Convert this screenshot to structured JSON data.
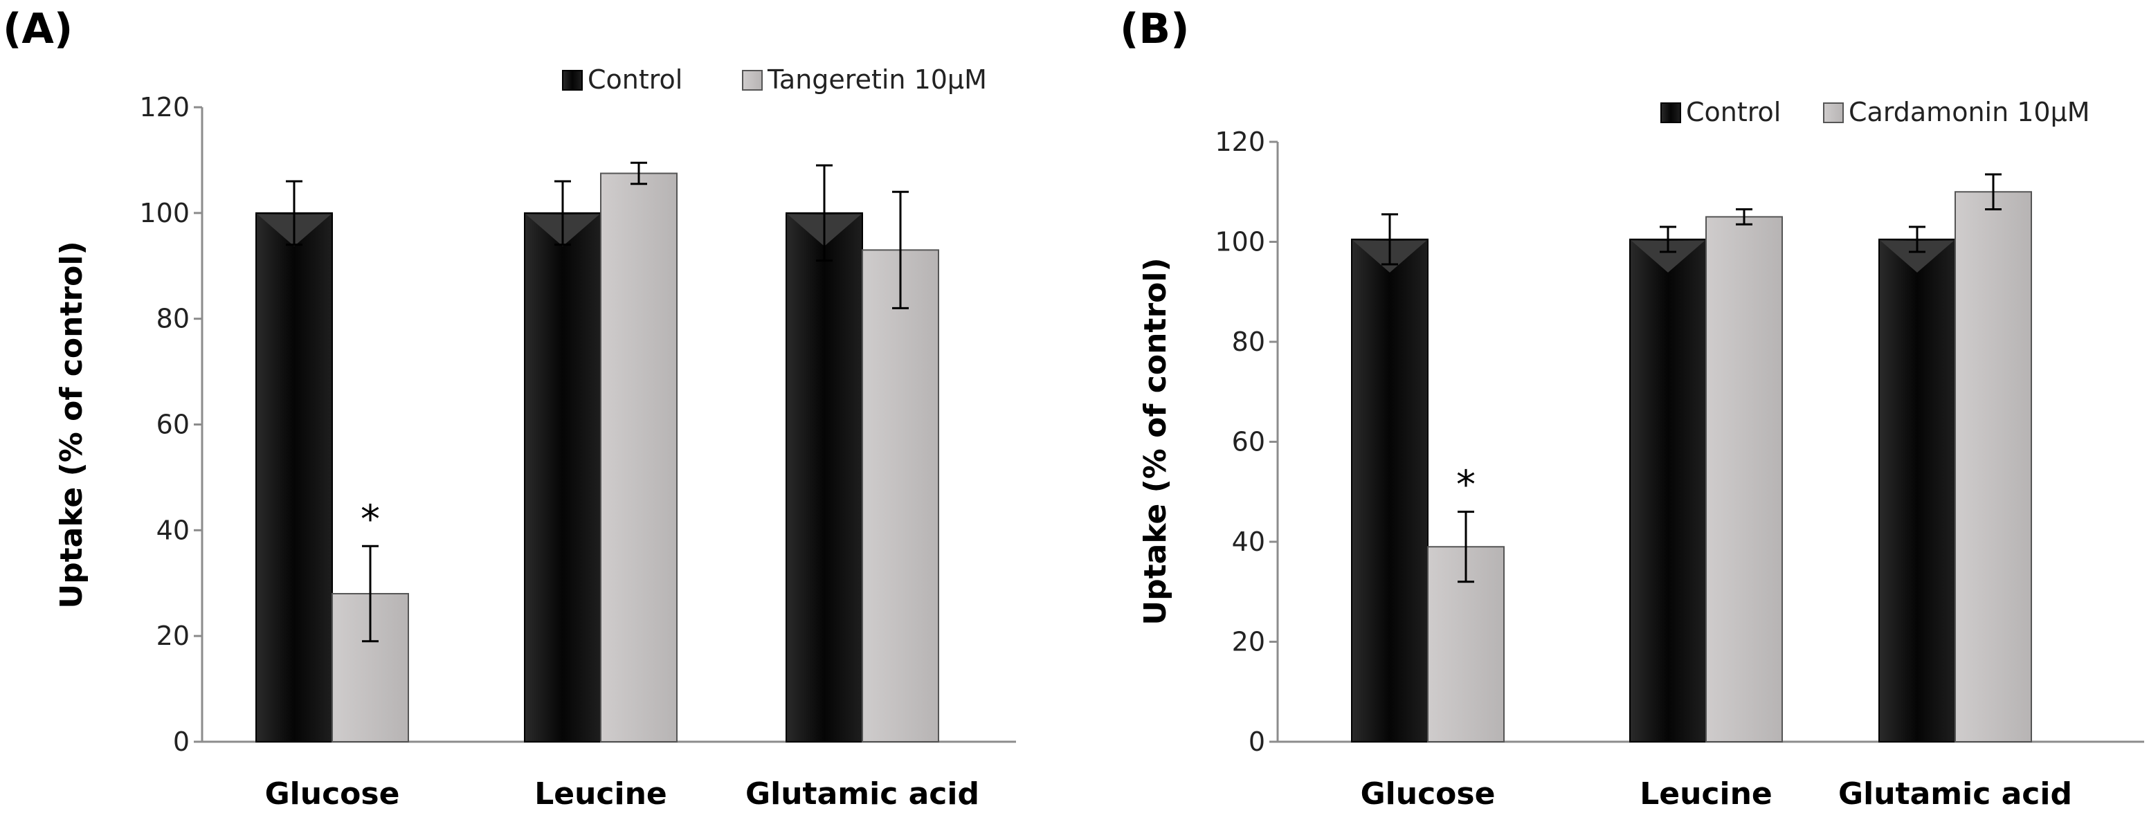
{
  "figure": {
    "colors": {
      "control": "#111111",
      "treatment": "#c0bdbd",
      "axis": "#8c8c8c",
      "error": "#000000"
    }
  },
  "chart_data": [
    {
      "type": "bar",
      "panel_label": "(A)",
      "title": "",
      "xlabel": "",
      "ylabel": "Uptake (% of control)",
      "categories": [
        "Glucose",
        "Leucine",
        "Glutamic acid"
      ],
      "ylim": [
        0,
        120
      ],
      "yticks": [
        0,
        20,
        40,
        60,
        80,
        100,
        120
      ],
      "legend_position": "top-right",
      "series": [
        {
          "name": "Control",
          "values": [
            100,
            100,
            100
          ],
          "errors": [
            6,
            6,
            9
          ]
        },
        {
          "name": "Tangeretin 10µM",
          "values": [
            28,
            107.5,
            93
          ],
          "errors": [
            9,
            2,
            11
          ]
        }
      ],
      "annotations": [
        {
          "category": "Glucose",
          "series": 1,
          "text": "*"
        }
      ]
    },
    {
      "type": "bar",
      "panel_label": "(B)",
      "title": "",
      "xlabel": "",
      "ylabel": "Uptake (% of control)",
      "categories": [
        "Glucose",
        "Leucine",
        "Glutamic acid"
      ],
      "ylim": [
        0,
        120
      ],
      "yticks": [
        0,
        20,
        40,
        60,
        80,
        100,
        120
      ],
      "legend_position": "top-right",
      "series": [
        {
          "name": "Control",
          "values": [
            100.5,
            100.5,
            100.5
          ],
          "errors": [
            5,
            2.5,
            2.5
          ]
        },
        {
          "name": "Cardamonin 10µM",
          "values": [
            39,
            105,
            110
          ],
          "errors": [
            7,
            1.5,
            3.5
          ]
        }
      ],
      "annotations": [
        {
          "category": "Glucose",
          "series": 1,
          "text": "*"
        }
      ]
    }
  ]
}
